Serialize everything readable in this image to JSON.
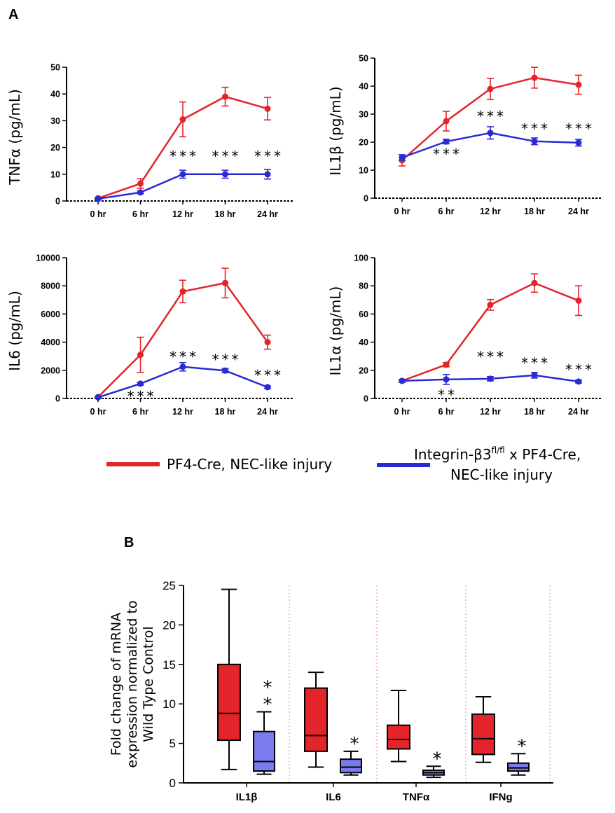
{
  "panel_a_label": "A",
  "panel_b_label": "B",
  "colors": {
    "red": "#e3242b",
    "blue": "#2a2ad6",
    "blue_box": "#7b7bf0",
    "divider": "#e58a8a"
  },
  "legend": {
    "red_label": "PF4-Cre, NEC-like injury",
    "blue_label_main": "Integrin-β3",
    "blue_label_sup": "fl/fl",
    "blue_label_rest": " x PF4-Cre,",
    "blue_label_line2": "NEC-like injury"
  },
  "chart_data": [
    {
      "id": "tnfa",
      "type": "line",
      "ylabel": "TNFα (pg/mL)",
      "categories": [
        "0 hr",
        "6 hr",
        "12 hr",
        "18 hr",
        "24 hr"
      ],
      "ylim": [
        0,
        50
      ],
      "yticks": [
        0,
        10,
        20,
        30,
        40,
        50
      ],
      "series": [
        {
          "name": "PF4-Cre, NEC-like injury",
          "color": "#e3242b",
          "values": [
            1,
            6.5,
            30.5,
            39,
            34.5
          ],
          "errors": [
            0.3,
            1.8,
            6.5,
            3.5,
            4.2
          ]
        },
        {
          "name": "Integrin-β3 fl/fl x PF4-Cre, NEC-like injury",
          "color": "#2a2ad6",
          "values": [
            0.8,
            3.2,
            10,
            10,
            10
          ],
          "errors": [
            0.3,
            0.5,
            1.5,
            1.5,
            1.8
          ]
        }
      ],
      "annotations": [
        {
          "category": "12 hr",
          "y": 17,
          "text": "***"
        },
        {
          "category": "18 hr",
          "y": 17,
          "text": "***"
        },
        {
          "category": "24 hr",
          "y": 17,
          "text": "***"
        }
      ]
    },
    {
      "id": "il1b",
      "type": "line",
      "ylabel": "IL1β (pg/mL)",
      "categories": [
        "0 hr",
        "6 hr",
        "12 hr",
        "18 hr",
        "24 hr"
      ],
      "ylim": [
        0,
        50
      ],
      "yticks": [
        0,
        10,
        20,
        30,
        40,
        50
      ],
      "series": [
        {
          "name": "PF4-Cre, NEC-like injury",
          "color": "#e3242b",
          "values": [
            13.5,
            27.5,
            39,
            43,
            40.5
          ],
          "errors": [
            2,
            3.5,
            3.8,
            3.7,
            3.4
          ]
        },
        {
          "name": "Integrin-β3 fl/fl x PF4-Cre, NEC-like injury",
          "color": "#2a2ad6",
          "values": [
            14.5,
            20.2,
            23.3,
            20.3,
            19.8
          ],
          "errors": [
            1,
            0.8,
            2.2,
            1.2,
            1.2
          ]
        }
      ],
      "annotations": [
        {
          "category": "6 hr",
          "y": 16,
          "text": "***"
        },
        {
          "category": "12 hr",
          "y": 29.5,
          "text": "***"
        },
        {
          "category": "18 hr",
          "y": 25,
          "text": "***"
        },
        {
          "category": "24 hr",
          "y": 25,
          "text": "***"
        }
      ]
    },
    {
      "id": "il6",
      "type": "line",
      "ylabel": "IL6 (pg/mL)",
      "categories": [
        "0 hr",
        "6 hr",
        "12 hr",
        "18 hr",
        "24 hr"
      ],
      "ylim": [
        0,
        10000
      ],
      "yticks": [
        0,
        2000,
        4000,
        6000,
        8000,
        10000
      ],
      "series": [
        {
          "name": "PF4-Cre, NEC-like injury",
          "color": "#e3242b",
          "values": [
            100,
            3100,
            7600,
            8200,
            4000
          ],
          "errors": [
            50,
            1250,
            800,
            1050,
            500
          ]
        },
        {
          "name": "Integrin-β3 fl/fl x PF4-Cre, NEC-like injury",
          "color": "#2a2ad6",
          "values": [
            80,
            1050,
            2250,
            1980,
            800
          ],
          "errors": [
            40,
            100,
            300,
            150,
            80
          ]
        }
      ],
      "annotations": [
        {
          "category": "6 hr",
          "y": 200,
          "text": "***"
        },
        {
          "category": "12 hr",
          "y": 3000,
          "text": "***"
        },
        {
          "category": "18 hr",
          "y": 2800,
          "text": "***"
        },
        {
          "category": "24 hr",
          "y": 1700,
          "text": "***"
        }
      ]
    },
    {
      "id": "il1a",
      "type": "line",
      "ylabel": "IL1α (pg/mL)",
      "categories": [
        "0 hr",
        "6 hr",
        "12 hr",
        "18 hr",
        "24 hr"
      ],
      "ylim": [
        0,
        100
      ],
      "yticks": [
        0,
        20,
        40,
        60,
        80,
        100
      ],
      "series": [
        {
          "name": "PF4-Cre, NEC-like injury",
          "color": "#e3242b",
          "values": [
            12.5,
            24,
            66.5,
            82,
            69.5
          ],
          "errors": [
            1,
            1.5,
            3.8,
            6.5,
            10.5
          ]
        },
        {
          "name": "Integrin-β3 fl/fl x PF4-Cre, NEC-like injury",
          "color": "#2a2ad6",
          "values": [
            12.5,
            13.5,
            14,
            16.5,
            12
          ],
          "errors": [
            1,
            3.5,
            1.5,
            2,
            1
          ]
        }
      ],
      "annotations": [
        {
          "category": "6 hr",
          "y": 3,
          "text": "**"
        },
        {
          "category": "12 hr",
          "y": 30,
          "text": "***"
        },
        {
          "category": "18 hr",
          "y": 25.5,
          "text": "***"
        },
        {
          "category": "24 hr",
          "y": 21,
          "text": "***"
        }
      ]
    },
    {
      "id": "mrna",
      "type": "box",
      "ylabel_lines": [
        "Fold change of mRNA",
        "expression normalized to",
        "Wild Type Control"
      ],
      "categories": [
        "IL1β",
        "IL6",
        "TNFα",
        "IFNg"
      ],
      "ylim": [
        0,
        25
      ],
      "yticks": [
        0,
        5,
        10,
        15,
        20,
        25
      ],
      "groups": [
        {
          "category": "IL1β",
          "red": {
            "min": 1.7,
            "q1": 5.4,
            "median": 8.8,
            "q3": 15,
            "max": 24.5
          },
          "blue": {
            "min": 1.1,
            "q1": 1.5,
            "median": 2.7,
            "q3": 6.5,
            "max": 9
          },
          "sig": "*\n*"
        },
        {
          "category": "IL6",
          "red": {
            "min": 2,
            "q1": 4,
            "median": 6,
            "q3": 12,
            "max": 14
          },
          "blue": {
            "min": 1,
            "q1": 1.3,
            "median": 2,
            "q3": 3,
            "max": 4
          },
          "sig": "*"
        },
        {
          "category": "TNFα",
          "red": {
            "min": 2.7,
            "q1": 4.3,
            "median": 5.5,
            "q3": 7.3,
            "max": 11.7
          },
          "blue": {
            "min": 0.7,
            "q1": 1,
            "median": 1.3,
            "q3": 1.6,
            "max": 2.1
          },
          "sig": "*"
        },
        {
          "category": "IFNg",
          "red": {
            "min": 2.6,
            "q1": 3.6,
            "median": 5.6,
            "q3": 8.7,
            "max": 10.9
          },
          "blue": {
            "min": 1,
            "q1": 1.5,
            "median": 1.9,
            "q3": 2.5,
            "max": 3.7
          },
          "sig": "*"
        }
      ]
    }
  ]
}
